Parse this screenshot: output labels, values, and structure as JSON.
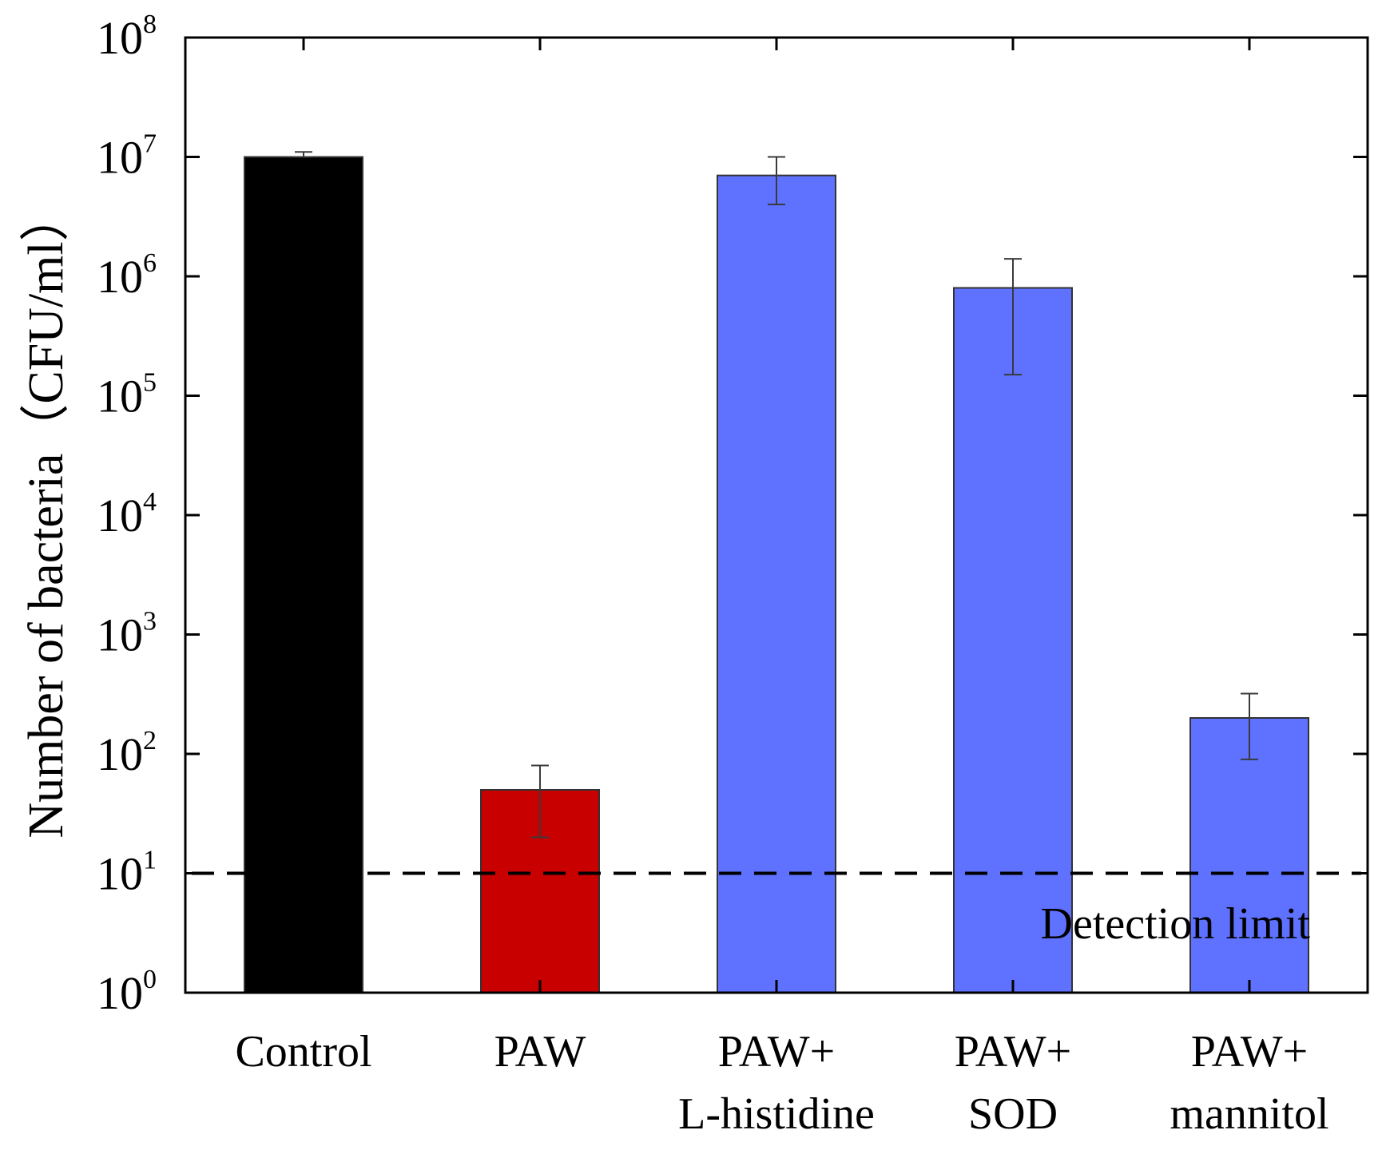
{
  "chart_data": {
    "type": "bar",
    "title": "",
    "xlabel": "",
    "ylabel": "Number of bacteria（CFU/ml）",
    "yscale": "log",
    "ylim": [
      1,
      100000000
    ],
    "yticks": [
      {
        "base": "10",
        "exp": "0",
        "value": 1
      },
      {
        "base": "10",
        "exp": "1",
        "value": 10
      },
      {
        "base": "10",
        "exp": "2",
        "value": 100
      },
      {
        "base": "10",
        "exp": "3",
        "value": 1000
      },
      {
        "base": "10",
        "exp": "4",
        "value": 10000
      },
      {
        "base": "10",
        "exp": "5",
        "value": 100000
      },
      {
        "base": "10",
        "exp": "6",
        "value": 1000000
      },
      {
        "base": "10",
        "exp": "7",
        "value": 10000000
      },
      {
        "base": "10",
        "exp": "8",
        "value": 100000000
      }
    ],
    "categories": [
      {
        "line1": "Control",
        "line2": ""
      },
      {
        "line1": "PAW",
        "line2": ""
      },
      {
        "line1": "PAW+",
        "line2": "L-histidine"
      },
      {
        "line1": "PAW+",
        "line2": "SOD"
      },
      {
        "line1": "PAW+",
        "line2": "mannitol"
      }
    ],
    "values": [
      10000000,
      50,
      7000000,
      800000,
      200
    ],
    "error_low": [
      10000000,
      20,
      4000000,
      150000,
      90
    ],
    "error_high": [
      11000000,
      80,
      10000000,
      1400000,
      320
    ],
    "colors": [
      "#000000",
      "#c80000",
      "#5f72ff",
      "#5f72ff",
      "#5f72ff"
    ],
    "grid": false,
    "reference_line": {
      "value": 10,
      "style": "dashed",
      "label": "Detection limit"
    }
  }
}
